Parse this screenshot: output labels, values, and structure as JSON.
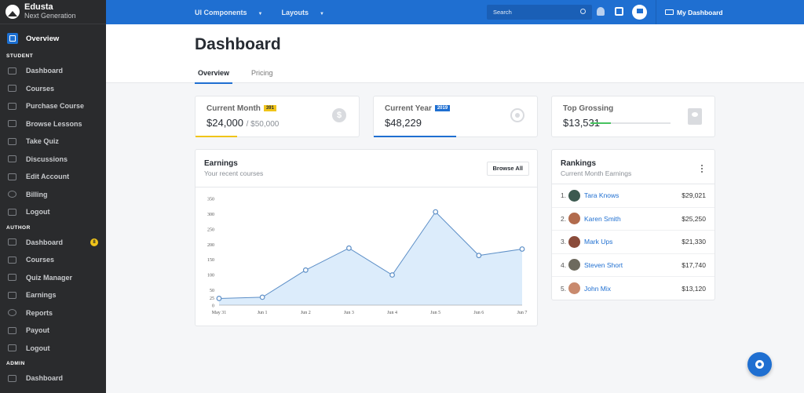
{
  "brand": {
    "name": "Edusta",
    "subtitle": "Next Generation"
  },
  "sidebar": {
    "overview_label": "Overview",
    "student_heading": "STUDENT",
    "student_items": [
      {
        "label": "Dashboard",
        "icon": "star-icon"
      },
      {
        "label": "Courses",
        "icon": "video-icon"
      },
      {
        "label": "Purchase Course",
        "icon": "cart-icon"
      },
      {
        "label": "Browse Lessons",
        "icon": "list-icon"
      },
      {
        "label": "Take Quiz",
        "icon": "quiz-icon"
      },
      {
        "label": "Discussions",
        "icon": "chat-icon"
      },
      {
        "label": "Edit Account",
        "icon": "gear-icon"
      },
      {
        "label": "Billing",
        "icon": "billing-icon"
      },
      {
        "label": "Logout",
        "icon": "logout-icon"
      }
    ],
    "author_heading": "AUTHOR",
    "author_items": [
      {
        "label": "Dashboard",
        "icon": "dashboard-icon",
        "badge": "8"
      },
      {
        "label": "Courses",
        "icon": "layers-icon"
      },
      {
        "label": "Quiz Manager",
        "icon": "clipboard-icon"
      },
      {
        "label": "Earnings",
        "icon": "money-icon"
      },
      {
        "label": "Reports",
        "icon": "pie-icon"
      },
      {
        "label": "Payout",
        "icon": "payout-icon"
      },
      {
        "label": "Logout",
        "icon": "logout-icon"
      }
    ],
    "admin_heading": "ADMIN",
    "admin_items": [
      {
        "label": "Dashboard",
        "icon": "dashboard-icon"
      }
    ]
  },
  "topbar": {
    "ui_components": "UI Components",
    "layouts": "Layouts",
    "search_placeholder": "Search",
    "my_dashboard": "My Dashboard"
  },
  "header": {
    "title": "Dashboard",
    "tabs": [
      "Overview",
      "Pricing"
    ]
  },
  "stats": {
    "current_month": {
      "label": "Current Month",
      "tag": "391",
      "value": "$24,000",
      "sub": "/ $50,000",
      "accent": "#f0c419"
    },
    "current_year": {
      "label": "Current Year",
      "tag": "2019",
      "value": "$48,229",
      "accent": "#1f6fd1"
    },
    "top_grossing": {
      "label": "Top Grossing",
      "value": "$13,531",
      "progress": 0.25,
      "accent": "#46c35f"
    }
  },
  "earnings": {
    "title": "Earnings",
    "subtitle": "Your recent courses",
    "browse_label": "Browse All"
  },
  "chart_data": {
    "type": "area",
    "x": [
      "May 31",
      "Jun 1",
      "Jun 2",
      "Jun 3",
      "Jun 4",
      "Jun 5",
      "Jun 6",
      "Jun 7"
    ],
    "values": [
      22,
      26,
      115,
      187,
      99,
      306,
      163,
      184
    ],
    "y_ticks": [
      0,
      25,
      50,
      100,
      150,
      200,
      250,
      300,
      350
    ],
    "ylim": [
      0,
      350
    ],
    "grid": false,
    "fill": "#dcecfb",
    "line": "#5d8fc7"
  },
  "rankings": {
    "title": "Rankings",
    "subtitle": "Current Month Earnings",
    "rows": [
      {
        "rank": "1.",
        "name": "Tara Knows",
        "amount": "$29,021",
        "avatar_color": "#3c5a50"
      },
      {
        "rank": "2.",
        "name": "Karen Smith",
        "amount": "$25,250",
        "avatar_color": "#b26b4d"
      },
      {
        "rank": "3.",
        "name": "Mark Ups",
        "amount": "$21,330",
        "avatar_color": "#8a4b3a"
      },
      {
        "rank": "4.",
        "name": "Steven Short",
        "amount": "$17,740",
        "avatar_color": "#6d6a5e"
      },
      {
        "rank": "5.",
        "name": "John Mix",
        "amount": "$13,120",
        "avatar_color": "#c98a6e"
      }
    ]
  }
}
